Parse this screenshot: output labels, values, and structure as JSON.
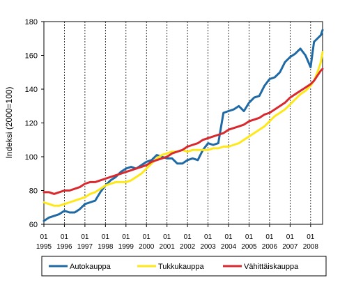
{
  "chart_data": {
    "type": "line",
    "ylabel": "Indeksi (2000=100)",
    "ylim": [
      60,
      180
    ],
    "yticks": [
      60,
      80,
      100,
      120,
      140,
      160,
      180
    ],
    "xlim": [
      "1995-01",
      "2008-08"
    ],
    "month_label": "01",
    "year_labels": [
      "1995",
      "1996",
      "1997",
      "1998",
      "1999",
      "2000",
      "2001",
      "2002",
      "2003",
      "2004",
      "2005",
      "2006",
      "2007",
      "2008"
    ],
    "grid": "vertical dashed lines at each January",
    "legend_position": "bottom",
    "series": [
      {
        "name": "Autokauppa",
        "color": "#1f6aa5",
        "x": [
          "1995-01",
          "1995-04",
          "1995-07",
          "1995-10",
          "1996-01",
          "1996-04",
          "1996-07",
          "1996-10",
          "1997-01",
          "1997-04",
          "1997-07",
          "1997-10",
          "1998-01",
          "1998-04",
          "1998-07",
          "1998-10",
          "1999-01",
          "1999-04",
          "1999-07",
          "1999-10",
          "2000-01",
          "2000-04",
          "2000-07",
          "2000-10",
          "2001-01",
          "2001-04",
          "2001-07",
          "2001-10",
          "2002-01",
          "2002-04",
          "2002-07",
          "2002-10",
          "2003-01",
          "2003-04",
          "2003-07",
          "2003-10",
          "2004-01",
          "2004-04",
          "2004-07",
          "2004-10",
          "2005-01",
          "2005-04",
          "2005-07",
          "2005-10",
          "2006-01",
          "2006-04",
          "2006-07",
          "2006-10",
          "2007-01",
          "2007-04",
          "2007-07",
          "2007-10",
          "2008-01",
          "2008-03",
          "2008-05",
          "2008-07",
          "2008-08"
        ],
        "values": [
          62,
          64,
          65,
          66,
          68,
          67,
          67,
          69,
          72,
          73,
          74,
          79,
          83,
          86,
          88,
          91,
          93,
          94,
          93,
          95,
          97,
          98,
          101,
          100,
          99,
          99,
          96,
          96,
          98,
          99,
          98,
          104,
          108,
          107,
          108,
          126,
          127,
          128,
          130,
          127,
          132,
          135,
          136,
          142,
          146,
          147,
          150,
          156,
          159,
          161,
          164,
          160,
          153,
          168,
          170,
          172,
          175
        ]
      },
      {
        "name": "Tukkukauppa",
        "color": "#ffe81a",
        "x": [
          "1995-01",
          "1995-04",
          "1995-07",
          "1995-10",
          "1996-01",
          "1996-04",
          "1996-07",
          "1996-10",
          "1997-01",
          "1997-04",
          "1997-07",
          "1997-10",
          "1998-01",
          "1998-04",
          "1998-07",
          "1998-10",
          "1999-01",
          "1999-04",
          "1999-07",
          "1999-10",
          "2000-01",
          "2000-04",
          "2000-07",
          "2000-10",
          "2001-01",
          "2001-04",
          "2001-07",
          "2001-10",
          "2002-01",
          "2002-04",
          "2002-07",
          "2002-10",
          "2003-01",
          "2003-04",
          "2003-07",
          "2003-10",
          "2004-01",
          "2004-04",
          "2004-07",
          "2004-10",
          "2005-01",
          "2005-04",
          "2005-07",
          "2005-10",
          "2006-01",
          "2006-04",
          "2006-07",
          "2006-10",
          "2007-01",
          "2007-04",
          "2007-07",
          "2007-10",
          "2008-01",
          "2008-03",
          "2008-05",
          "2008-07",
          "2008-08"
        ],
        "values": [
          73,
          72,
          71,
          71,
          72,
          73,
          74,
          75,
          76,
          78,
          79,
          81,
          83,
          84,
          85,
          85,
          85,
          86,
          88,
          90,
          93,
          96,
          99,
          101,
          102,
          103,
          103,
          104,
          103,
          104,
          104,
          104,
          104,
          105,
          105,
          106,
          106,
          107,
          108,
          110,
          112,
          114,
          116,
          118,
          121,
          124,
          126,
          128,
          131,
          134,
          137,
          139,
          142,
          145,
          150,
          156,
          162
        ]
      },
      {
        "name": "Vähittäiskauppa",
        "color": "#d8292f",
        "x": [
          "1995-01",
          "1995-04",
          "1995-07",
          "1995-10",
          "1996-01",
          "1996-04",
          "1996-07",
          "1996-10",
          "1997-01",
          "1997-04",
          "1997-07",
          "1997-10",
          "1998-01",
          "1998-04",
          "1998-07",
          "1998-10",
          "1999-01",
          "1999-04",
          "1999-07",
          "1999-10",
          "2000-01",
          "2000-04",
          "2000-07",
          "2000-10",
          "2001-01",
          "2001-04",
          "2001-07",
          "2001-10",
          "2002-01",
          "2002-04",
          "2002-07",
          "2002-10",
          "2003-01",
          "2003-04",
          "2003-07",
          "2003-10",
          "2004-01",
          "2004-04",
          "2004-07",
          "2004-10",
          "2005-01",
          "2005-04",
          "2005-07",
          "2005-10",
          "2006-01",
          "2006-04",
          "2006-07",
          "2006-10",
          "2007-01",
          "2007-04",
          "2007-07",
          "2007-10",
          "2008-01",
          "2008-03",
          "2008-05",
          "2008-07",
          "2008-08"
        ],
        "values": [
          79,
          79,
          78,
          79,
          80,
          80,
          81,
          82,
          84,
          85,
          85,
          86,
          87,
          88,
          89,
          90,
          91,
          92,
          93,
          94,
          95,
          97,
          98,
          99,
          100,
          102,
          103,
          104,
          106,
          107,
          108,
          110,
          111,
          112,
          113,
          114,
          116,
          117,
          118,
          119,
          121,
          122,
          123,
          125,
          126,
          128,
          130,
          132,
          135,
          137,
          139,
          141,
          143,
          145,
          148,
          151,
          152
        ]
      }
    ]
  }
}
